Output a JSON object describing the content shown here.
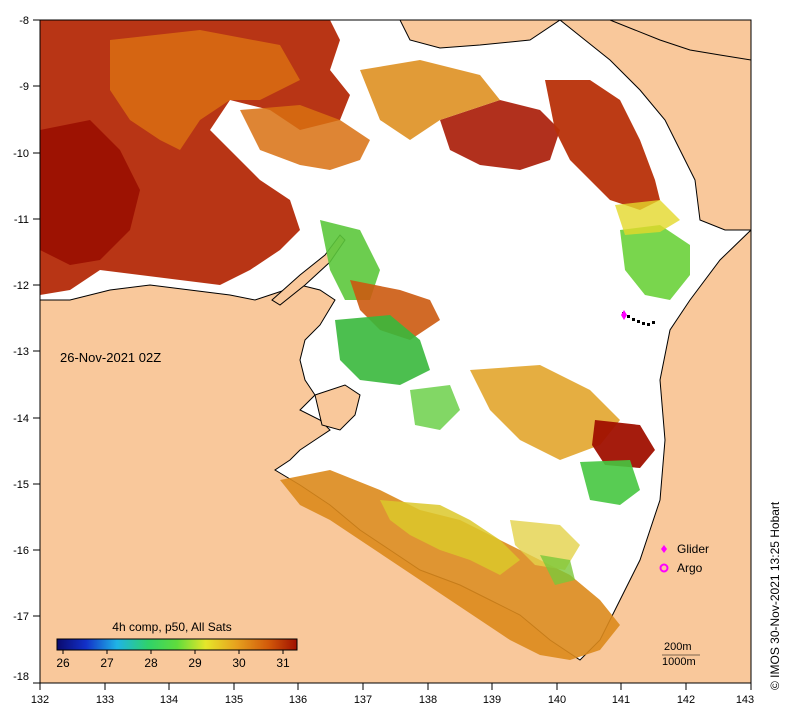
{
  "map": {
    "date_label": "26-Nov-2021 02Z",
    "lon_ticks": [
      "132",
      "133",
      "134",
      "135",
      "136",
      "137",
      "138",
      "139",
      "140",
      "141",
      "142",
      "143"
    ],
    "lat_ticks": [
      "-8",
      "-9",
      "-10",
      "-11",
      "-12",
      "-13",
      "-14",
      "-15",
      "-16",
      "-17",
      "-18"
    ],
    "lon_range": [
      132,
      143
    ],
    "lat_range": [
      -8,
      -18
    ],
    "colors": {
      "land": "#f9c89b",
      "sea_nodata": "#ffffff",
      "coast": "#000000"
    }
  },
  "legend": {
    "glider_label": "Glider",
    "argo_label": "Argo",
    "marker_color": "#ff00ff"
  },
  "colorbar": {
    "title": "4h comp, p50, All Sats",
    "ticks": [
      "26",
      "27",
      "28",
      "29",
      "30",
      "31"
    ],
    "range": [
      25.8,
      31.3
    ]
  },
  "depth_labels": [
    "200m",
    "1000m"
  ],
  "credit": "© IMOS 30-Nov-2021 13:25 Hobart"
}
